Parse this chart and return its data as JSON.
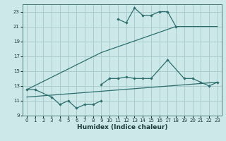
{
  "xlabel": "Humidex (Indice chaleur)",
  "background_color": "#cde8e8",
  "grid_color": "#aacccc",
  "line_color": "#2d6e6e",
  "xlim": [
    -0.5,
    23.5
  ],
  "ylim": [
    9,
    24
  ],
  "yticks": [
    9,
    11,
    13,
    15,
    17,
    19,
    21,
    23
  ],
  "xticks": [
    0,
    1,
    2,
    3,
    4,
    5,
    6,
    7,
    8,
    9,
    10,
    11,
    12,
    13,
    14,
    15,
    16,
    17,
    18,
    19,
    20,
    21,
    22,
    23
  ],
  "curve_zigzag": {
    "x": [
      0,
      1,
      3,
      4,
      5,
      6,
      7,
      8,
      9
    ],
    "y": [
      12.5,
      12.5,
      11.5,
      10.5,
      11.0,
      10.0,
      10.5,
      10.5,
      11.0
    ]
  },
  "curve_middle": {
    "x": [
      9,
      10,
      11,
      12,
      13,
      14,
      15,
      17,
      19,
      20,
      21,
      22,
      23
    ],
    "y": [
      13.2,
      14.0,
      14.0,
      14.2,
      14.0,
      14.0,
      14.0,
      16.5,
      14.0,
      14.0,
      13.5,
      13.0,
      13.5
    ]
  },
  "curve_top": {
    "x": [
      11,
      12,
      13,
      14,
      15,
      16,
      17,
      18
    ],
    "y": [
      22.0,
      21.5,
      23.5,
      22.5,
      22.5,
      23.0,
      23.0,
      21.0
    ]
  },
  "curve_upper_diag": {
    "x": [
      0,
      9,
      18,
      19,
      23
    ],
    "y": [
      12.5,
      17.5,
      21.0,
      21.0,
      21.0
    ]
  },
  "curve_lower_diag": {
    "x": [
      0,
      23
    ],
    "y": [
      11.5,
      13.5
    ]
  }
}
